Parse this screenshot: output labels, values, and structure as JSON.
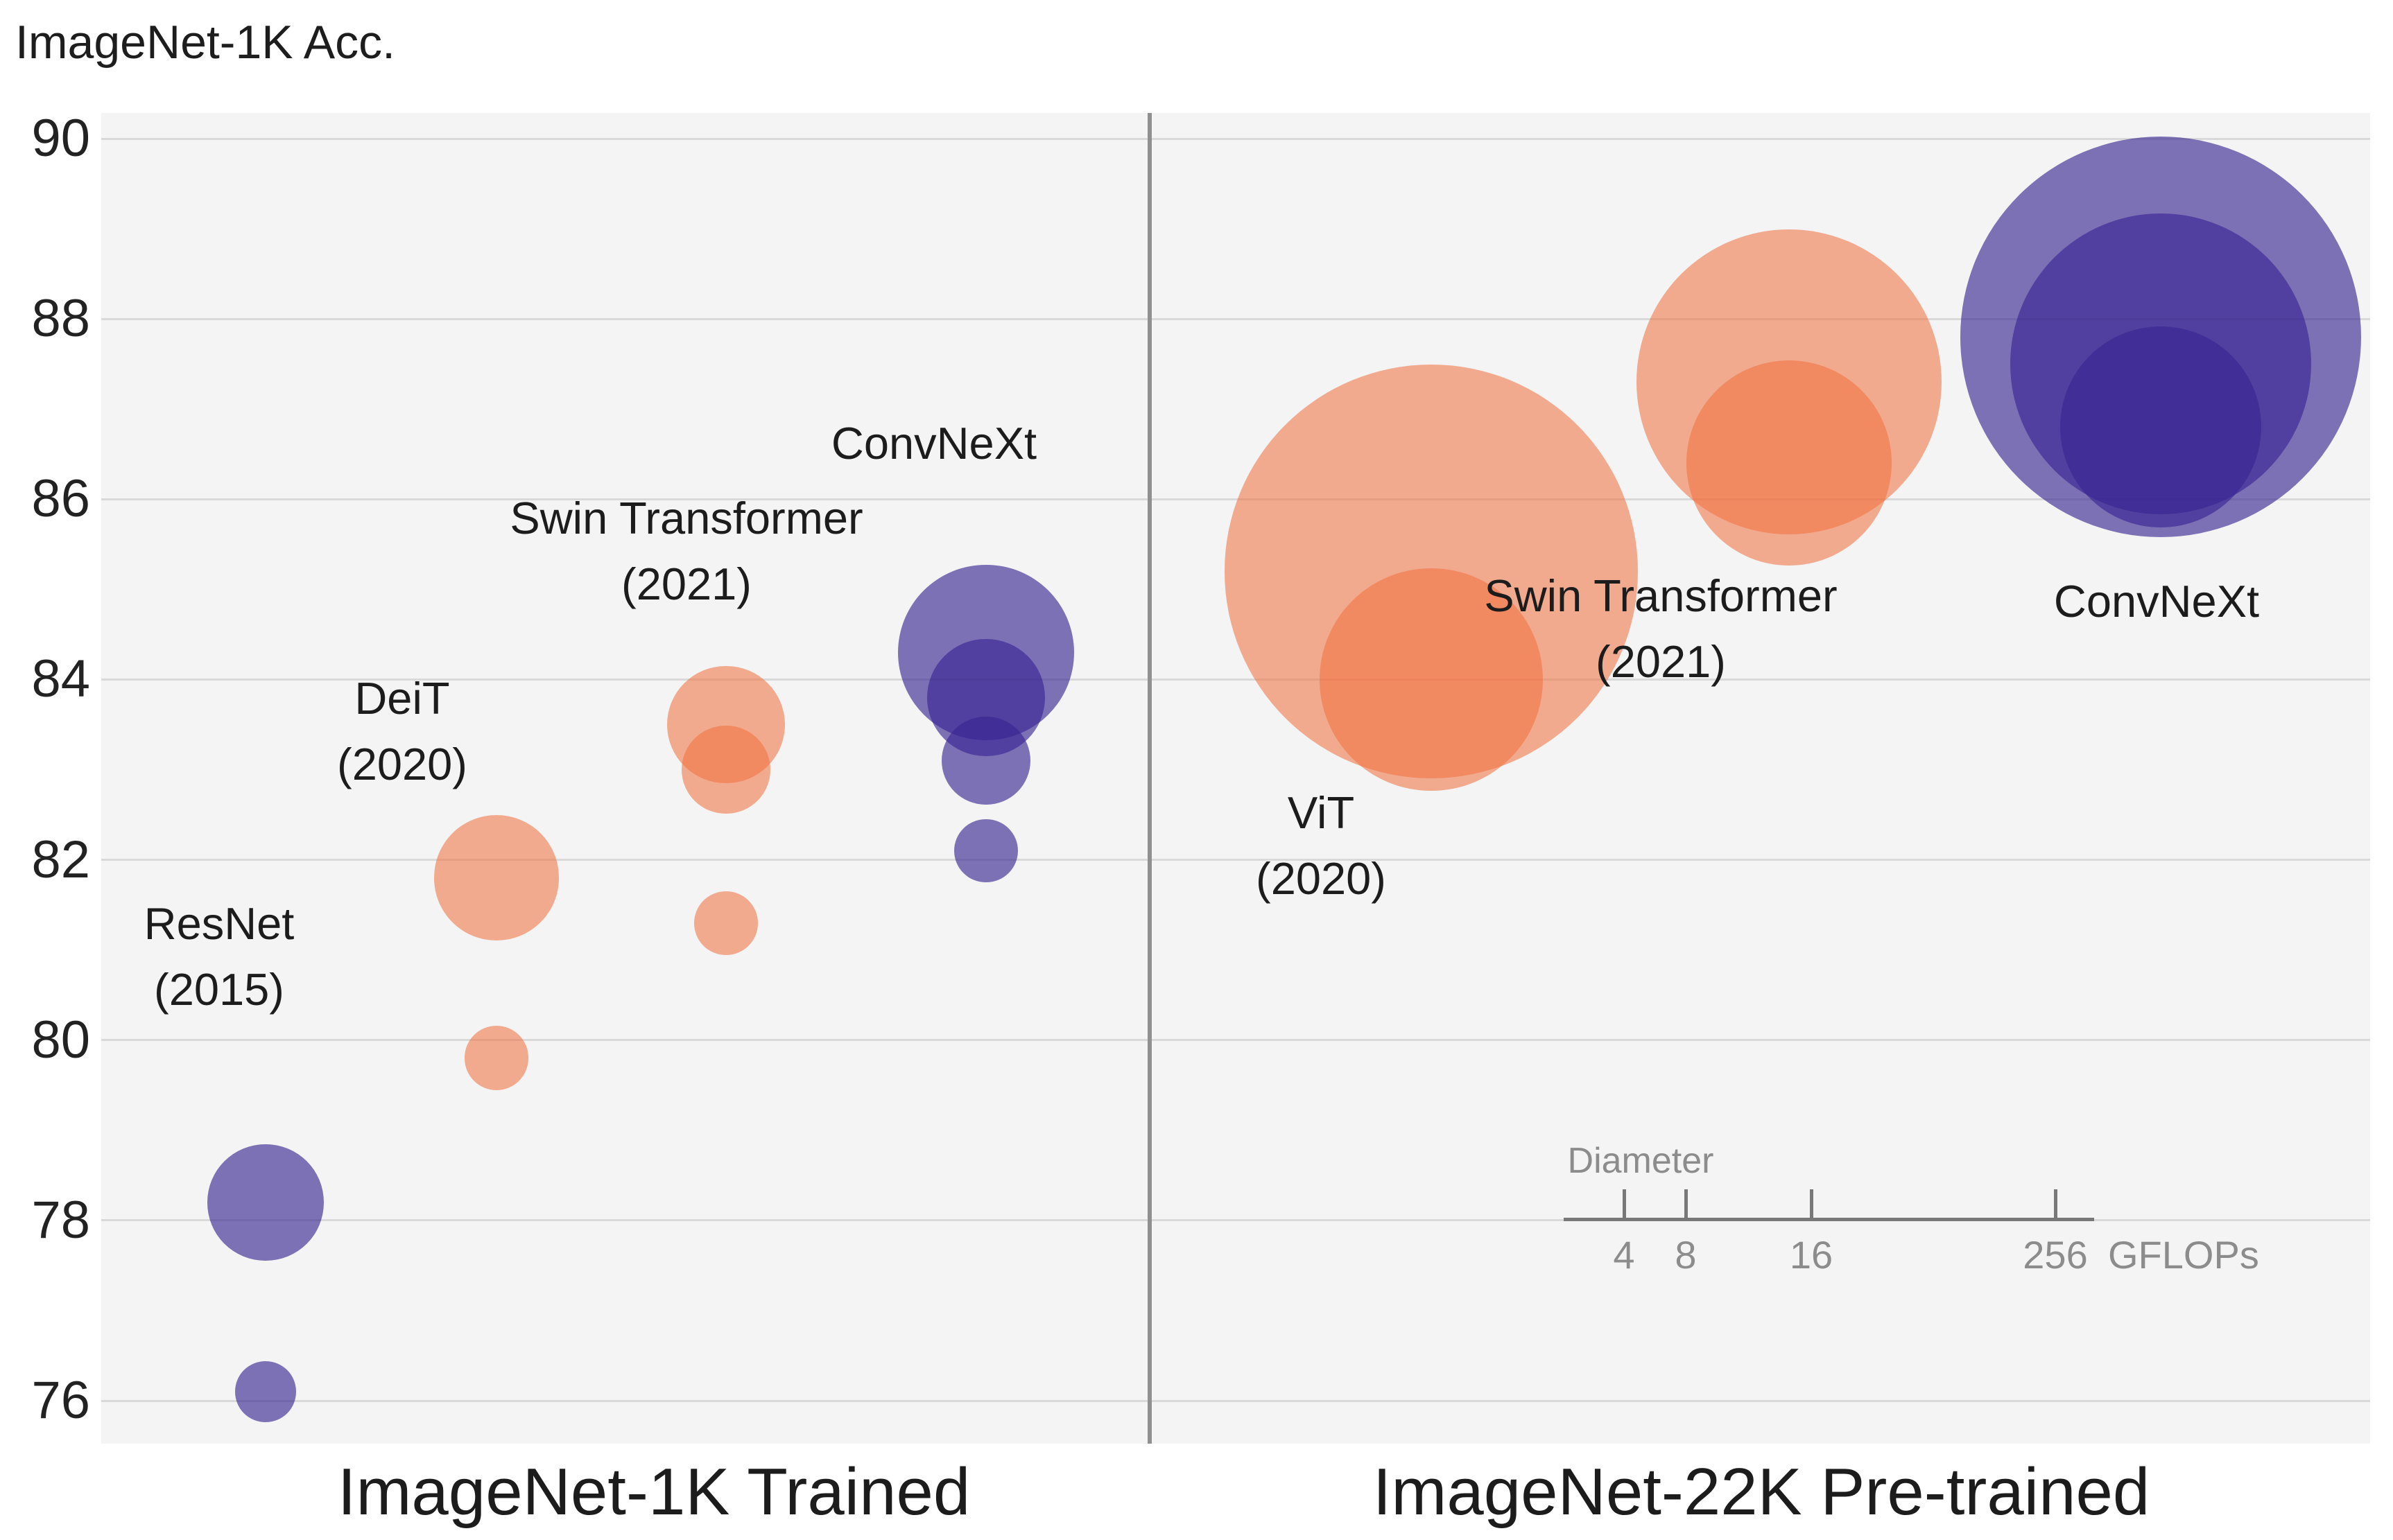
{
  "title": "ImageNet-1K Acc.",
  "panels": {
    "left_label": "ImageNet-1K Trained",
    "right_label": "ImageNet-22K Pre-trained"
  },
  "y_axis": {
    "ticks": [
      90,
      88,
      86,
      84,
      82,
      80,
      78,
      76
    ],
    "min_value": 75.5,
    "max_value": 90.3
  },
  "colors": {
    "convnet_bubble": "rgba(55,36,145,0.63)",
    "transformer_bubble": "rgba(240,110,60,0.55)",
    "plot_background": "#f4f4f4",
    "gridline": "#d9d9d9",
    "divider": "#909090",
    "text": "#1c1c1c",
    "legend_gray": "#8c8c8c"
  },
  "chart_data": {
    "type": "scatter",
    "subtype": "bubble",
    "title": "ImageNet-1K Acc.",
    "ylabel": "ImageNet-1K Acc.",
    "ylim": [
      75.5,
      90.3
    ],
    "grid": true,
    "bubble_size_meaning": "circle diameter proportional to model GFLOPs",
    "series": [
      {
        "name": "ResNet (2015)",
        "label_lines": [
          "ResNet",
          "(2015)"
        ],
        "family": "convnet",
        "panel": "ImageNet-1K Trained",
        "points": [
          {
            "acc": 76.1,
            "gflops": 4.1
          },
          {
            "acc": 78.2,
            "gflops": 15.0
          }
        ]
      },
      {
        "name": "DeiT (2020)",
        "label_lines": [
          "DeiT",
          "(2020)"
        ],
        "family": "transformer",
        "panel": "ImageNet-1K Trained",
        "points": [
          {
            "acc": 79.8,
            "gflops": 4.6
          },
          {
            "acc": 81.8,
            "gflops": 17.5
          }
        ]
      },
      {
        "name": "Swin Transformer (2021)",
        "label_lines": [
          "Swin Transformer",
          "(2021)"
        ],
        "family": "transformer",
        "panel": "ImageNet-1K Trained",
        "points": [
          {
            "acc": 81.3,
            "gflops": 4.5
          },
          {
            "acc": 83.0,
            "gflops": 8.7
          },
          {
            "acc": 83.5,
            "gflops": 15.4
          }
        ]
      },
      {
        "name": "ConvNeXt",
        "label_lines": [
          "ConvNeXt"
        ],
        "family": "convnet",
        "panel": "ImageNet-1K Trained",
        "points": [
          {
            "acc": 82.1,
            "gflops": 4.5
          },
          {
            "acc": 83.1,
            "gflops": 8.7
          },
          {
            "acc": 83.8,
            "gflops": 15.4
          },
          {
            "acc": 84.3,
            "gflops": 34.4
          }
        ]
      },
      {
        "name": "ViT (2020)",
        "label_lines": [
          "ViT",
          "(2020)"
        ],
        "family": "transformer",
        "panel": "ImageNet-22K Pre-trained",
        "points": [
          {
            "acc": 84.0,
            "gflops": 55.5
          },
          {
            "acc": 85.2,
            "gflops": 190.7
          }
        ]
      },
      {
        "name": "Swin Transformer (2021)",
        "label_lines": [
          "Swin Transformer",
          "(2021)"
        ],
        "family": "transformer",
        "panel": "ImageNet-22K Pre-trained",
        "points": [
          {
            "acc": 86.4,
            "gflops": 47.0
          },
          {
            "acc": 87.3,
            "gflops": 103.9
          }
        ]
      },
      {
        "name": "ConvNeXt",
        "label_lines": [
          "ConvNeXt"
        ],
        "family": "convnet",
        "panel": "ImageNet-22K Pre-trained",
        "points": [
          {
            "acc": 86.8,
            "gflops": 45.1
          },
          {
            "acc": 87.5,
            "gflops": 101.0
          },
          {
            "acc": 87.8,
            "gflops": 179.0
          }
        ]
      }
    ],
    "size_legend": {
      "label": "Diameter",
      "ticks": [
        4,
        8,
        16,
        256
      ],
      "unit": "GFLOPs"
    }
  }
}
